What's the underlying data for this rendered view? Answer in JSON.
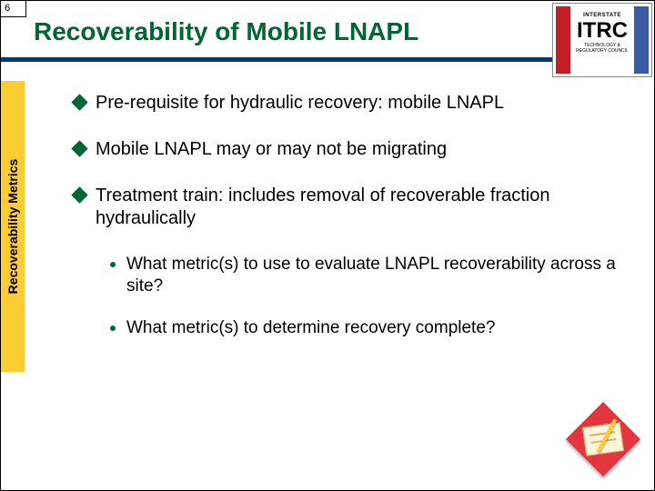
{
  "page_number": "6",
  "title": "Recoverability of Mobile LNAPL",
  "sidebar_label": "Recoverability Metrics",
  "logo": {
    "top_text": "INTERSTATE",
    "main": "ITRC",
    "sub": "TECHNOLOGY & REGULATORY COUNCIL"
  },
  "bullets": [
    {
      "text": "Pre-requisite for hydraulic recovery: mobile LNAPL"
    },
    {
      "text": "Mobile LNAPL may or may not be migrating"
    },
    {
      "text": "Treatment train: includes removal of recoverable fraction hydraulically"
    }
  ],
  "sub_bullets": [
    {
      "text": "What metric(s) to use to evaluate LNAPL recoverability across a site?"
    },
    {
      "text": "What metric(s) to determine recovery complete?"
    }
  ],
  "colors": {
    "title": "#006633",
    "underline": "#003a7a",
    "sidebar_bg": "#ffcc33",
    "bullet_marker": "#006633",
    "logo_left": "#c31f28",
    "logo_right": "#3a5aa8",
    "deco_diamond": "#e2353e"
  }
}
